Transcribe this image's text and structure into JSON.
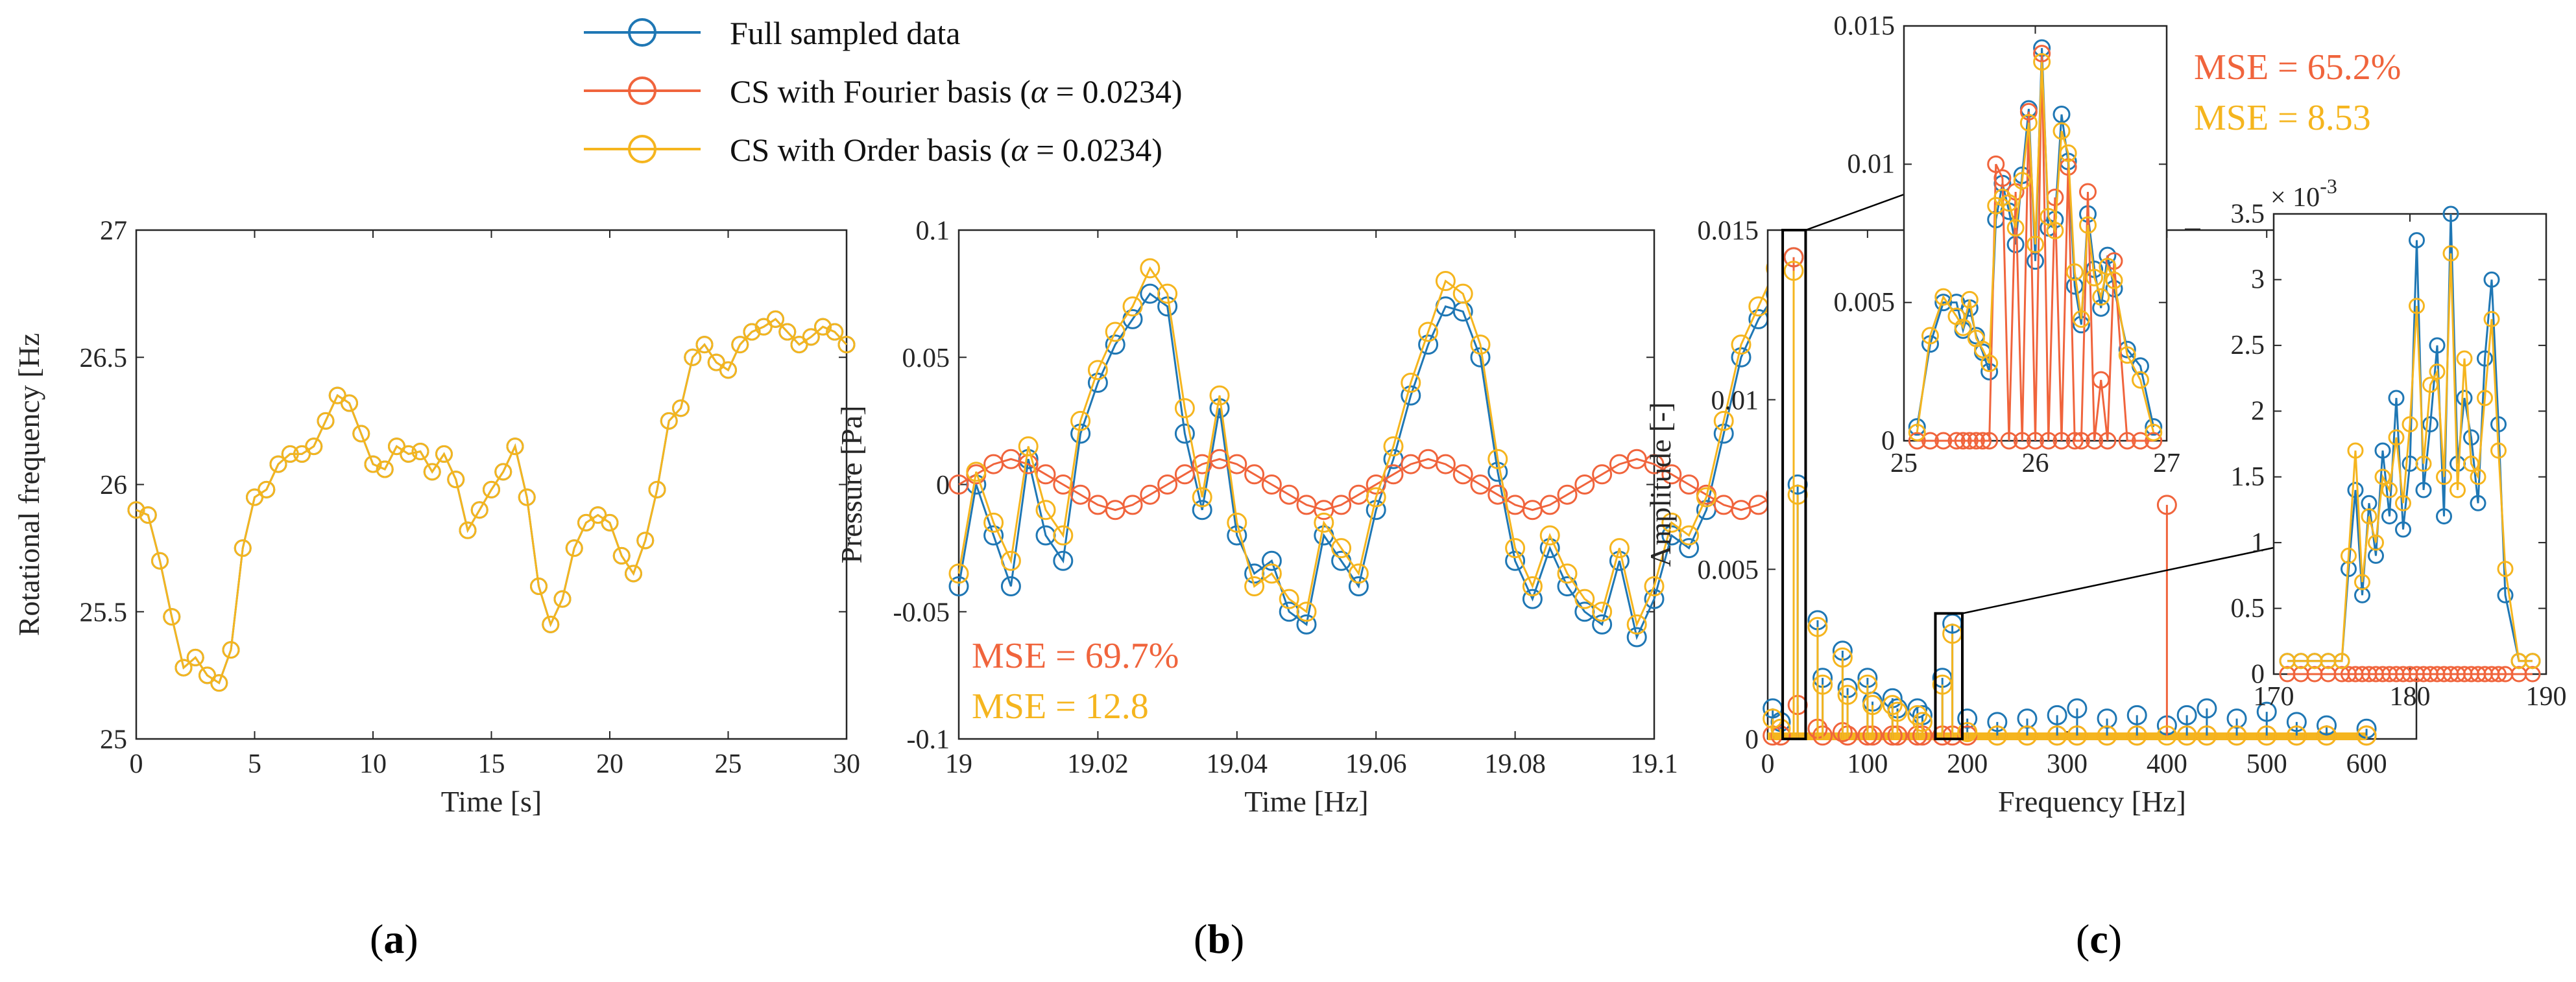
{
  "colors": {
    "full": "#1f77b4",
    "full_marker": "#2f8fcf",
    "fourier": "#f0643c",
    "order": "#f5b51e",
    "axis": "#262626"
  },
  "legend": {
    "full": "Full sampled data",
    "fourier_prefix": "CS with Fourier basis (",
    "order_prefix": "CS with Order basis (",
    "alpha_symbol": "α",
    "alpha_value": " = 0.0234)"
  },
  "panels": {
    "a": {
      "label_open": "(",
      "label_letter": "a",
      "label_close": ")"
    },
    "b": {
      "label_open": "(",
      "label_letter": "b",
      "label_close": ")",
      "mse_fourier": "MSE = 69.7%",
      "mse_order": "MSE = 12.8"
    },
    "c": {
      "label_open": "(",
      "label_letter": "c",
      "label_close": ")",
      "mse_fourier": "MSE = 65.2%",
      "mse_order": "MSE = 8.53",
      "exponent_base": "× 10",
      "exponent_power": "-3"
    }
  },
  "chart_data": [
    {
      "id": "a",
      "type": "line",
      "title": "",
      "xlabel": "Time [s]",
      "ylabel": "Rotational frequency [Hz",
      "xlim": [
        0,
        30
      ],
      "ylim": [
        25,
        27
      ],
      "xticks": [
        0,
        5,
        10,
        15,
        20,
        25,
        30
      ],
      "yticks": [
        25,
        25.5,
        26,
        26.5,
        27
      ],
      "ytick_labels": [
        "25",
        "25.5",
        "26",
        "26.5",
        "27"
      ],
      "x": [
        0,
        0.5,
        1,
        1.5,
        2,
        2.5,
        3,
        3.5,
        4,
        4.5,
        5,
        5.5,
        6,
        6.5,
        7,
        7.5,
        8,
        8.5,
        9,
        9.5,
        10,
        10.5,
        11,
        11.5,
        12,
        12.5,
        13,
        13.5,
        14,
        14.5,
        15,
        15.5,
        16,
        16.5,
        17,
        17.5,
        18,
        18.5,
        19,
        19.5,
        20,
        20.5,
        21,
        21.5,
        22,
        22.5,
        23,
        23.5,
        24,
        24.5,
        25,
        25.5,
        26,
        26.5,
        27,
        27.5,
        28,
        28.5,
        29,
        29.5,
        30
      ],
      "series": [
        {
          "name": "Full sampled data",
          "values": [
            25.9,
            25.88,
            25.7,
            25.48,
            25.28,
            25.32,
            25.25,
            25.22,
            25.35,
            25.75,
            25.95,
            25.98,
            26.08,
            26.12,
            26.12,
            26.15,
            26.25,
            26.35,
            26.32,
            26.2,
            26.08,
            26.06,
            26.15,
            26.12,
            26.13,
            26.05,
            26.12,
            26.02,
            25.82,
            25.9,
            25.98,
            26.05,
            26.15,
            25.95,
            25.6,
            25.45,
            25.55,
            25.75,
            25.85,
            25.88,
            25.85,
            25.72,
            25.65,
            25.78,
            25.98,
            26.25,
            26.3,
            26.5,
            26.55,
            26.48,
            26.45,
            26.55,
            26.6,
            26.62,
            26.65,
            26.6,
            26.55,
            26.58,
            26.62,
            26.6,
            26.55
          ]
        },
        {
          "name": "CS with Order basis (α = 0.0234)",
          "values": [
            25.9,
            25.88,
            25.7,
            25.48,
            25.28,
            25.32,
            25.25,
            25.22,
            25.35,
            25.75,
            25.95,
            25.98,
            26.08,
            26.12,
            26.12,
            26.15,
            26.25,
            26.35,
            26.32,
            26.2,
            26.08,
            26.06,
            26.15,
            26.12,
            26.13,
            26.05,
            26.12,
            26.02,
            25.82,
            25.9,
            25.98,
            26.05,
            26.15,
            25.95,
            25.6,
            25.45,
            25.55,
            25.75,
            25.85,
            25.88,
            25.85,
            25.72,
            25.65,
            25.78,
            25.98,
            26.25,
            26.3,
            26.5,
            26.55,
            26.48,
            26.45,
            26.55,
            26.6,
            26.62,
            26.65,
            26.6,
            26.55,
            26.58,
            26.62,
            26.6,
            26.55
          ]
        }
      ]
    },
    {
      "id": "b",
      "type": "line",
      "title": "",
      "xlabel": "Time [Hz]",
      "ylabel": "Pressure [Pa]",
      "xlim": [
        19,
        19.1
      ],
      "ylim": [
        -0.1,
        0.1
      ],
      "xticks": [
        19,
        19.02,
        19.04,
        19.06,
        19.08,
        19.1
      ],
      "xtick_labels": [
        "19",
        "19.02",
        "19.04",
        "19.06",
        "19.08",
        "19.1"
      ],
      "yticks": [
        -0.1,
        -0.05,
        0,
        0.05,
        0.1
      ],
      "ytick_labels": [
        "-0.1",
        "-0.05",
        "0",
        "0.05",
        "0.1"
      ],
      "x_start": 19,
      "x_step": 0.0025,
      "series": [
        {
          "name": "Full sampled data",
          "values": [
            -0.04,
            0.0,
            -0.02,
            -0.04,
            0.01,
            -0.02,
            -0.03,
            0.02,
            0.04,
            0.055,
            0.065,
            0.075,
            0.07,
            0.02,
            -0.01,
            0.03,
            -0.02,
            -0.035,
            -0.03,
            -0.05,
            -0.055,
            -0.02,
            -0.03,
            -0.04,
            -0.01,
            0.01,
            0.035,
            0.055,
            0.07,
            0.068,
            0.05,
            0.005,
            -0.03,
            -0.045,
            -0.025,
            -0.04,
            -0.05,
            -0.055,
            -0.03,
            -0.06,
            -0.045,
            -0.02,
            -0.025,
            -0.01,
            0.02,
            0.05,
            0.065,
            0.075,
            0.04,
            0.01,
            -0.01
          ]
        },
        {
          "name": "CS with Fourier basis (α = 0.0234)",
          "values": [
            0.0,
            0.004,
            0.008,
            0.01,
            0.008,
            0.004,
            0.0,
            -0.004,
            -0.008,
            -0.01,
            -0.008,
            -0.004,
            0.0,
            0.004,
            0.008,
            0.01,
            0.008,
            0.004,
            0.0,
            -0.004,
            -0.008,
            -0.01,
            -0.008,
            -0.004,
            0.0,
            0.004,
            0.008,
            0.01,
            0.008,
            0.004,
            0.0,
            -0.004,
            -0.008,
            -0.01,
            -0.008,
            -0.004,
            0.0,
            0.004,
            0.008,
            0.01,
            0.008,
            0.004,
            0.0,
            -0.004,
            -0.008,
            -0.01,
            -0.008,
            -0.004,
            0.0,
            0.004,
            0.008
          ]
        },
        {
          "name": "CS with Order basis (α = 0.0234)",
          "values": [
            -0.035,
            0.005,
            -0.015,
            -0.03,
            0.015,
            -0.01,
            -0.02,
            0.025,
            0.045,
            0.06,
            0.07,
            0.085,
            0.075,
            0.03,
            -0.005,
            0.035,
            -0.015,
            -0.04,
            -0.035,
            -0.045,
            -0.05,
            -0.015,
            -0.025,
            -0.035,
            -0.005,
            0.015,
            0.04,
            0.06,
            0.08,
            0.075,
            0.055,
            0.01,
            -0.025,
            -0.04,
            -0.02,
            -0.035,
            -0.045,
            -0.05,
            -0.025,
            -0.055,
            -0.04,
            -0.015,
            -0.02,
            -0.005,
            0.025,
            0.055,
            0.07,
            0.085,
            0.045,
            0.015,
            -0.005
          ]
        }
      ]
    },
    {
      "id": "c",
      "type": "line",
      "title": "",
      "xlabel": "Frequency [Hz]",
      "ylabel": "Amplitude [-]",
      "xlim": [
        0,
        650
      ],
      "ylim": [
        0,
        0.015
      ],
      "xticks": [
        0,
        100,
        200,
        300,
        400,
        500,
        600
      ],
      "yticks": [
        0,
        0.005,
        0.01,
        0.015
      ],
      "ytick_labels": [
        "0",
        "0.005",
        "0.01",
        "0.015"
      ],
      "x": [
        5,
        13,
        26,
        30,
        50,
        55,
        75,
        80,
        100,
        105,
        125,
        130,
        150,
        155,
        175,
        185,
        200,
        230,
        260,
        290,
        310,
        340,
        370,
        400,
        420,
        440,
        470,
        500,
        530,
        560,
        600
      ],
      "series": [
        {
          "name": "Full sampled data",
          "values": [
            0.0009,
            0.0005,
            0.0142,
            0.0075,
            0.0035,
            0.0018,
            0.0026,
            0.0015,
            0.0018,
            0.0011,
            0.0012,
            0.0009,
            0.0009,
            0.0007,
            0.0018,
            0.0034,
            0.0006,
            0.0005,
            0.0006,
            0.0007,
            0.0009,
            0.0006,
            0.0007,
            0.0004,
            0.0007,
            0.0009,
            0.0006,
            0.0008,
            0.0005,
            0.0004,
            0.0003
          ]
        },
        {
          "name": "CS with Fourier basis (α = 0.0234)",
          "values": [
            0.0001,
            0.0001,
            0.0142,
            0.001,
            0.0003,
            0.0001,
            0.0002,
            0.0001,
            0.0001,
            0.0001,
            0.0001,
            0.0001,
            0.0001,
            0.0001,
            0.0001,
            0.0001,
            0.0001,
            0.0001,
            0.0001,
            0.0001,
            0.0001,
            0.0001,
            0.0001,
            0.0069,
            0.0001,
            0.0001,
            0.0001,
            0.0001,
            0.0001,
            0.0001,
            0.0001
          ]
        },
        {
          "name": "CS with Order basis (α = 0.0234)",
          "values": [
            0.0006,
            0.0003,
            0.0138,
            0.0072,
            0.0033,
            0.0016,
            0.0024,
            0.0013,
            0.0016,
            0.001,
            0.001,
            0.0008,
            0.0007,
            0.0005,
            0.0016,
            0.0031,
            0.0002,
            0.0001,
            0.0001,
            0.0001,
            0.0001,
            0.0001,
            0.0001,
            0.0001,
            0.0001,
            0.0001,
            0.0001,
            0.0001,
            0.0001,
            0.0001,
            0.0001
          ]
        }
      ],
      "insets": [
        {
          "id": "c-zoom-1",
          "xlim": [
            25,
            27
          ],
          "ylim": [
            0,
            0.015
          ],
          "xticks": [
            25,
            26,
            27
          ],
          "yticks": [
            0,
            0.005,
            0.01,
            0.015
          ],
          "ytick_labels": [
            "0",
            "0.005",
            "0.01",
            "0.015"
          ],
          "x": [
            25.1,
            25.2,
            25.3,
            25.4,
            25.45,
            25.5,
            25.55,
            25.6,
            25.65,
            25.7,
            25.75,
            25.8,
            25.85,
            25.9,
            25.95,
            26.0,
            26.05,
            26.1,
            26.15,
            26.2,
            26.25,
            26.3,
            26.35,
            26.4,
            26.45,
            26.5,
            26.55,
            26.6,
            26.7,
            26.8,
            26.9
          ],
          "series": [
            {
              "name": "Full sampled data",
              "values": [
                0.0005,
                0.0035,
                0.005,
                0.005,
                0.004,
                0.0048,
                0.0038,
                0.0032,
                0.0025,
                0.008,
                0.0093,
                0.0083,
                0.0071,
                0.0096,
                0.012,
                0.0065,
                0.0142,
                0.0077,
                0.008,
                0.0118,
                0.0101,
                0.0056,
                0.0042,
                0.0082,
                0.0062,
                0.0048,
                0.0067,
                0.0055,
                0.0033,
                0.0027,
                0.0005
              ]
            },
            {
              "name": "CS with Fourier basis (α = 0.0234)",
              "values": [
                0,
                0,
                0,
                0,
                0,
                0,
                0,
                0,
                0,
                0.01,
                0.0095,
                0,
                0.009,
                0,
                0.0119,
                0,
                0.014,
                0,
                0.0088,
                0,
                0.0099,
                0,
                0,
                0.009,
                0,
                0.0022,
                0,
                0.0065,
                0,
                0,
                0
              ]
            },
            {
              "name": "CS with Order basis (α = 0.0234)",
              "values": [
                0.0003,
                0.0038,
                0.0052,
                0.0045,
                0.0041,
                0.0051,
                0.0037,
                0.0033,
                0.0028,
                0.0085,
                0.0088,
                0.0086,
                0.0077,
                0.0094,
                0.0115,
                0.0071,
                0.0137,
                0.0081,
                0.0076,
                0.0112,
                0.0104,
                0.0061,
                0.0044,
                0.0078,
                0.0059,
                0.0052,
                0.0063,
                0.0058,
                0.0031,
                0.0022,
                0.0003
              ]
            }
          ]
        },
        {
          "id": "c-zoom-2",
          "xlim": [
            170,
            190
          ],
          "ylim": [
            0,
            0.0035
          ],
          "xticks": [
            170,
            180,
            190
          ],
          "yticks": [
            0,
            0.0005,
            0.001,
            0.0015,
            0.002,
            0.0025,
            0.003,
            0.0035
          ],
          "ytick_labels": [
            "0",
            "0.5",
            "1",
            "1.5",
            "2",
            "2.5",
            "3",
            "3.5"
          ],
          "x": [
            171,
            172,
            173,
            174,
            175,
            175.5,
            176,
            176.5,
            177,
            177.5,
            178,
            178.5,
            179,
            179.5,
            180,
            180.5,
            181,
            181.5,
            182,
            182.5,
            183,
            183.5,
            184,
            184.5,
            185,
            185.5,
            186,
            186.5,
            187,
            188,
            189
          ],
          "series": [
            {
              "name": "Full sampled data",
              "values": [
                0.0001,
                0.0001,
                0.0001,
                0.0001,
                0.0001,
                0.0008,
                0.0014,
                0.0006,
                0.0013,
                0.0009,
                0.0017,
                0.0012,
                0.0021,
                0.0011,
                0.0016,
                0.0033,
                0.0014,
                0.0019,
                0.0025,
                0.0012,
                0.0035,
                0.0016,
                0.0021,
                0.0018,
                0.0013,
                0.0024,
                0.003,
                0.0019,
                0.0006,
                0.0001,
                0.0001
              ]
            },
            {
              "name": "CS with Fourier basis (α = 0.0234)",
              "values": [
                0,
                0,
                0,
                0,
                0,
                0,
                0,
                0,
                0,
                0,
                0,
                0,
                0,
                0,
                0,
                0,
                0,
                0,
                0,
                0,
                0,
                0,
                0,
                0,
                0,
                0,
                0,
                0,
                0,
                0,
                0
              ]
            },
            {
              "name": "CS with Order basis (α = 0.0234)",
              "values": [
                0.0001,
                0.0001,
                0.0001,
                0.0001,
                0.0001,
                0.0009,
                0.0017,
                0.0007,
                0.0012,
                0.001,
                0.0015,
                0.0014,
                0.0018,
                0.0013,
                0.0019,
                0.0028,
                0.0016,
                0.0022,
                0.0023,
                0.0015,
                0.0032,
                0.0014,
                0.0024,
                0.0016,
                0.0015,
                0.0021,
                0.0027,
                0.0017,
                0.0008,
                0.0001,
                0.0001
              ]
            }
          ]
        }
      ]
    }
  ]
}
